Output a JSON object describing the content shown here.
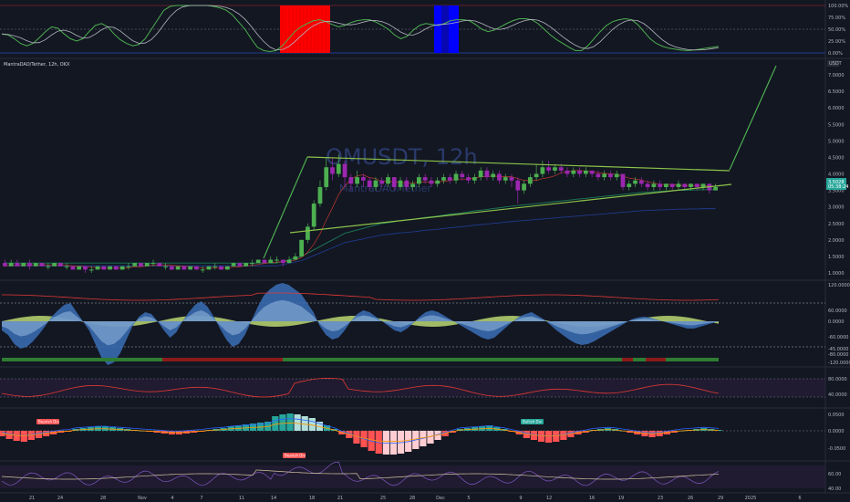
{
  "chart_data": {
    "type": "candlestick",
    "symbol_title": "MantraDAO/Tether, 12h, OKX",
    "watermark_symbol": "OMUSDT, 12h",
    "watermark_name": "MantraDAO/Tether",
    "currency_label": "USDT",
    "last_price_label": "3.5028",
    "countdown_label": "05:38:24",
    "main_price_ticks": [
      "7.0000",
      "6.5000",
      "6.0000",
      "5.5000",
      "5.0000",
      "4.5000",
      "4.0000",
      "3.5000",
      "3.0000",
      "2.5000",
      "2.0000",
      "1.5000",
      "1.0000"
    ],
    "top_osc_ticks": [
      "100.00%",
      "75.00%",
      "50.00%",
      "25.00%",
      "0.00%"
    ],
    "wave_ticks": [
      "120.0000",
      "60.0000",
      "0.0000",
      "-60.0000",
      "-120.0000"
    ],
    "wave_minus45_label": "-45.0000",
    "wave_minus80_label": "-80.0000",
    "rsi_ticks": [
      "80.0000",
      "40.0000"
    ],
    "macd_ticks": [
      "0.0500",
      "0.0000",
      "-0.0500"
    ],
    "bottom_ticks": [
      "60.00",
      "40.00"
    ],
    "x_labels": [
      "21",
      "24",
      "28",
      "Nov",
      "4",
      "7",
      "11",
      "14",
      "18",
      "21",
      "25",
      "28",
      "Dec",
      "5",
      "9",
      "12",
      "16",
      "19",
      "23",
      "26",
      "29",
      "2025",
      "6"
    ],
    "macd_badges": [
      "Bearish Div",
      "Bullish Div",
      "Bearish Div"
    ],
    "candles": [
      [
        1.3,
        1.2,
        1.4,
        1.2
      ],
      [
        1.2,
        1.3,
        1.4,
        1.2
      ],
      [
        1.3,
        1.2,
        1.4,
        1.2
      ],
      [
        1.2,
        1.3,
        1.3,
        1.2
      ],
      [
        1.3,
        1.2,
        1.4,
        1.1
      ],
      [
        1.2,
        1.3,
        1.3,
        1.2
      ],
      [
        1.3,
        1.2,
        1.3,
        1.2
      ],
      [
        1.2,
        1.2,
        1.3,
        1.1
      ],
      [
        1.2,
        1.3,
        1.3,
        1.2
      ],
      [
        1.3,
        1.2,
        1.3,
        1.2
      ],
      [
        1.2,
        1.2,
        1.3,
        1.1
      ],
      [
        1.2,
        1.1,
        1.2,
        1.1
      ],
      [
        1.1,
        1.2,
        1.2,
        1.1
      ],
      [
        1.2,
        1.1,
        1.2,
        1.0
      ],
      [
        1.1,
        1.1,
        1.2,
        1.0
      ],
      [
        1.1,
        1.2,
        1.2,
        1.1
      ],
      [
        1.2,
        1.1,
        1.2,
        1.1
      ],
      [
        1.1,
        1.2,
        1.2,
        1.1
      ],
      [
        1.2,
        1.1,
        1.2,
        1.1
      ],
      [
        1.1,
        1.2,
        1.2,
        1.1
      ],
      [
        1.2,
        1.2,
        1.3,
        1.1
      ],
      [
        1.2,
        1.3,
        1.3,
        1.2
      ],
      [
        1.3,
        1.2,
        1.3,
        1.2
      ],
      [
        1.2,
        1.3,
        1.3,
        1.2
      ],
      [
        1.3,
        1.3,
        1.4,
        1.2
      ],
      [
        1.3,
        1.2,
        1.3,
        1.2
      ],
      [
        1.2,
        1.2,
        1.3,
        1.1
      ],
      [
        1.2,
        1.1,
        1.2,
        1.1
      ],
      [
        1.1,
        1.2,
        1.2,
        1.1
      ],
      [
        1.2,
        1.1,
        1.2,
        1.1
      ],
      [
        1.1,
        1.2,
        1.2,
        1.1
      ],
      [
        1.2,
        1.1,
        1.2,
        1.1
      ],
      [
        1.1,
        1.1,
        1.2,
        1.0
      ],
      [
        1.1,
        1.2,
        1.2,
        1.1
      ],
      [
        1.2,
        1.2,
        1.3,
        1.1
      ],
      [
        1.2,
        1.1,
        1.2,
        1.1
      ],
      [
        1.1,
        1.2,
        1.2,
        1.1
      ],
      [
        1.2,
        1.3,
        1.3,
        1.2
      ],
      [
        1.3,
        1.2,
        1.3,
        1.2
      ],
      [
        1.2,
        1.3,
        1.3,
        1.2
      ],
      [
        1.3,
        1.3,
        1.4,
        1.2
      ],
      [
        1.3,
        1.4,
        1.4,
        1.3
      ],
      [
        1.4,
        1.3,
        1.4,
        1.3
      ],
      [
        1.3,
        1.4,
        1.5,
        1.3
      ],
      [
        1.4,
        1.4,
        1.5,
        1.3
      ],
      [
        1.4,
        1.3,
        1.4,
        1.2
      ],
      [
        1.3,
        1.4,
        1.5,
        1.3
      ],
      [
        1.4,
        1.5,
        1.6,
        1.4
      ],
      [
        1.5,
        2.0,
        2.0,
        1.5
      ],
      [
        2.0,
        2.4,
        2.5,
        1.9
      ],
      [
        2.4,
        3.1,
        3.2,
        2.3
      ],
      [
        3.1,
        3.6,
        3.8,
        3.0
      ],
      [
        3.6,
        4.2,
        4.5,
        3.5
      ],
      [
        4.2,
        4.0,
        4.5,
        3.8
      ],
      [
        4.0,
        4.3,
        4.6,
        3.9
      ],
      [
        4.3,
        3.9,
        4.4,
        3.6
      ],
      [
        3.9,
        3.7,
        4.0,
        3.5
      ],
      [
        3.7,
        3.9,
        4.1,
        3.6
      ],
      [
        3.9,
        3.8,
        4.0,
        3.6
      ],
      [
        3.8,
        3.6,
        3.9,
        3.5
      ],
      [
        3.6,
        3.8,
        3.9,
        3.5
      ],
      [
        3.8,
        3.7,
        3.9,
        3.6
      ],
      [
        3.7,
        3.9,
        4.0,
        3.6
      ],
      [
        3.9,
        3.6,
        3.9,
        3.5
      ],
      [
        3.6,
        3.8,
        3.9,
        3.5
      ],
      [
        3.8,
        3.6,
        3.9,
        3.5
      ],
      [
        3.6,
        3.7,
        3.8,
        3.5
      ],
      [
        3.7,
        3.9,
        4.0,
        3.6
      ],
      [
        3.9,
        3.8,
        4.0,
        3.7
      ],
      [
        3.8,
        3.7,
        3.9,
        3.6
      ],
      [
        3.7,
        3.8,
        3.9,
        3.6
      ],
      [
        3.8,
        3.9,
        4.0,
        3.7
      ],
      [
        3.9,
        3.8,
        4.0,
        3.7
      ],
      [
        3.8,
        4.0,
        4.1,
        3.7
      ],
      [
        4.0,
        3.9,
        4.1,
        3.8
      ],
      [
        3.9,
        3.8,
        4.0,
        3.7
      ],
      [
        3.8,
        3.9,
        4.0,
        3.7
      ],
      [
        3.9,
        4.1,
        4.2,
        3.8
      ],
      [
        4.1,
        3.9,
        4.2,
        3.8
      ],
      [
        3.9,
        4.0,
        4.1,
        3.8
      ],
      [
        4.0,
        3.8,
        4.1,
        3.7
      ],
      [
        3.8,
        3.9,
        4.0,
        3.7
      ],
      [
        3.9,
        3.8,
        4.0,
        3.6
      ],
      [
        3.8,
        3.5,
        3.9,
        3.1
      ],
      [
        3.5,
        3.7,
        3.8,
        3.4
      ],
      [
        3.7,
        3.9,
        4.0,
        3.6
      ],
      [
        3.9,
        4.0,
        4.3,
        3.8
      ],
      [
        4.0,
        4.2,
        4.4,
        3.9
      ],
      [
        4.2,
        4.1,
        4.4,
        4.0
      ],
      [
        4.1,
        4.2,
        4.3,
        4.0
      ],
      [
        4.2,
        4.1,
        4.3,
        4.0
      ],
      [
        4.1,
        4.0,
        4.2,
        3.9
      ],
      [
        4.0,
        4.1,
        4.2,
        3.9
      ],
      [
        4.1,
        4.0,
        4.2,
        3.9
      ],
      [
        4.0,
        4.1,
        4.2,
        3.9
      ],
      [
        4.1,
        4.0,
        4.1,
        3.9
      ],
      [
        4.0,
        3.9,
        4.1,
        3.8
      ],
      [
        3.9,
        4.0,
        4.1,
        3.8
      ],
      [
        4.0,
        3.9,
        4.1,
        3.8
      ],
      [
        3.9,
        4.0,
        4.1,
        3.8
      ],
      [
        4.0,
        3.6,
        4.0,
        3.5
      ],
      [
        3.6,
        3.7,
        3.8,
        3.5
      ],
      [
        3.7,
        3.8,
        3.9,
        3.6
      ],
      [
        3.8,
        3.7,
        3.9,
        3.6
      ],
      [
        3.7,
        3.6,
        3.8,
        3.5
      ],
      [
        3.6,
        3.7,
        3.8,
        3.5
      ],
      [
        3.7,
        3.6,
        3.8,
        3.5
      ],
      [
        3.6,
        3.7,
        3.7,
        3.5
      ],
      [
        3.7,
        3.6,
        3.7,
        3.5
      ],
      [
        3.6,
        3.7,
        3.8,
        3.5
      ],
      [
        3.7,
        3.6,
        3.7,
        3.5
      ],
      [
        3.6,
        3.7,
        3.7,
        3.5
      ],
      [
        3.7,
        3.6,
        3.7,
        3.5
      ],
      [
        3.6,
        3.7,
        3.7,
        3.5
      ],
      [
        3.7,
        3.5,
        3.7,
        3.4
      ],
      [
        3.5,
        3.6,
        3.7,
        3.5
      ]
    ],
    "ma_slow": [
      1.3,
      1.3,
      1.3,
      1.3,
      1.3,
      1.3,
      1.3,
      1.3,
      1.3,
      1.3,
      1.3,
      1.3,
      1.3,
      1.3,
      1.3,
      1.3,
      1.3,
      1.3,
      1.3,
      1.3,
      1.3,
      1.3,
      1.3,
      1.3,
      1.3,
      1.3,
      1.3,
      1.3,
      1.3,
      1.3,
      1.3,
      1.3,
      1.3,
      1.3,
      1.3,
      1.3,
      1.3,
      1.3,
      1.3,
      1.3,
      1.3,
      1.3,
      1.3,
      1.3,
      1.3,
      1.35,
      1.4,
      1.45,
      1.5,
      1.6,
      1.7,
      1.8,
      1.9,
      2.0,
      2.1,
      2.2,
      2.25,
      2.3,
      2.35,
      2.4,
      2.45,
      2.5,
      2.52,
      2.55,
      2.58,
      2.6,
      2.62,
      2.65,
      2.68,
      2.7,
      2.72,
      2.75,
      2.78,
      2.8,
      2.82,
      2.85,
      2.88,
      2.9,
      2.92,
      2.95,
      2.97,
      3.0,
      3.02,
      3.04,
      3.06,
      3.08,
      3.1,
      3.12,
      3.14,
      3.16,
      3.18,
      3.2,
      3.22,
      3.24,
      3.26,
      3.28,
      3.3,
      3.32,
      3.34,
      3.36,
      3.38,
      3.4,
      3.42,
      3.44,
      3.45,
      3.46,
      3.47,
      3.48,
      3.49,
      3.5,
      3.5,
      3.51,
      3.51,
      3.52,
      3.52,
      3.52
    ]
  }
}
